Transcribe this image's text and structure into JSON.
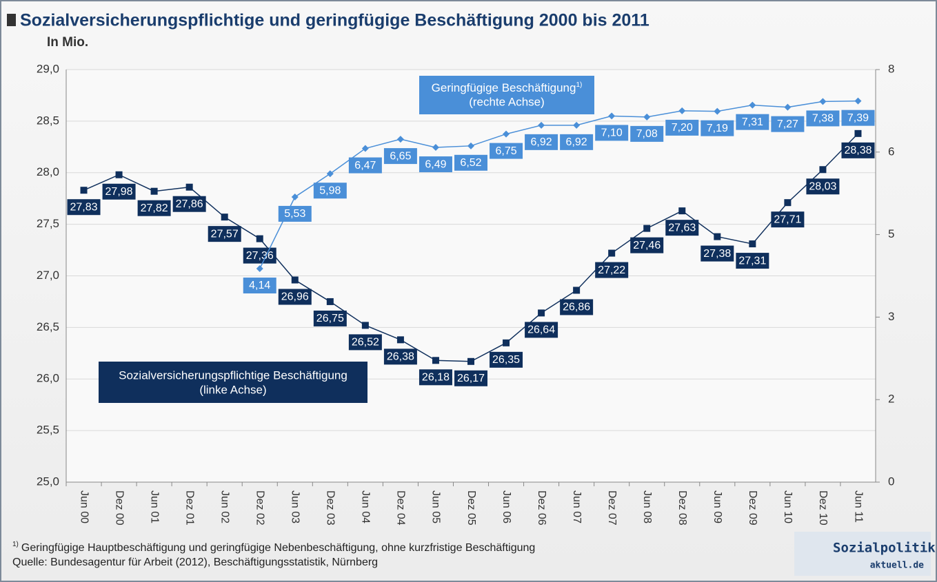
{
  "chart_data": {
    "type": "line",
    "title": "Sozialversicherungspflichtige und geringfügige Beschäftigung 2000 bis 2011",
    "subtitle": "In Mio.",
    "categories": [
      "Jun 00",
      "Dez 00",
      "Jun 01",
      "Dez 01",
      "Jun 02",
      "Dez 02",
      "Jun 03",
      "Dez 03",
      "Jun 04",
      "Dez 04",
      "Jun 05",
      "Dez 05",
      "Jun 06",
      "Dez 06",
      "Jun 07",
      "Dez 07",
      "Jun 08",
      "Dez 08",
      "Jun 09",
      "Dez 09",
      "Jun 10",
      "Dez 10",
      "Jun 11"
    ],
    "ylim": [
      25,
      29
    ],
    "yticks": [
      {
        "value": 25,
        "label": "25,0"
      },
      {
        "value": 25.5,
        "label": "25,5"
      },
      {
        "value": 26,
        "label": "26,0"
      },
      {
        "value": 26.5,
        "label": "26,5"
      },
      {
        "value": 27,
        "label": "27,0"
      },
      {
        "value": 27.5,
        "label": "27,5"
      },
      {
        "value": 28,
        "label": "28,0"
      },
      {
        "value": 28.5,
        "label": "28,5"
      },
      {
        "value": 29,
        "label": "29,0"
      }
    ],
    "y2lim": [
      0,
      8
    ],
    "y2ticks": [
      0,
      {
        "value": 1.6,
        "label": "2"
      },
      {
        "value": 3.2,
        "label": "3"
      },
      {
        "value": 4.8,
        "label": "5"
      },
      {
        "value": 6.4,
        "label": "6"
      },
      8
    ],
    "grid": true,
    "series": [
      {
        "name": "Sozialversicherungspflichtige Beschäftigung",
        "axis_note": "(linke Achse)",
        "color": "#0f2f5c",
        "marker": "square",
        "values": [
          27.83,
          27.98,
          27.82,
          27.86,
          27.57,
          27.36,
          26.96,
          26.75,
          26.52,
          26.38,
          26.18,
          26.17,
          26.35,
          26.64,
          26.86,
          27.22,
          27.46,
          27.63,
          27.38,
          27.31,
          27.71,
          28.03,
          28.38
        ],
        "value_labels": [
          "27,83",
          "27,98",
          "27,82",
          "27,86",
          "27,57",
          "27,36",
          "26,96",
          "26,75",
          "26,52",
          "26,38",
          "26,18",
          "26,17",
          "26,35",
          "26,64",
          "26,86",
          "27,22",
          "27,46",
          "27,63",
          "27,38",
          "27,31",
          "27,71",
          "28,03",
          "28,38"
        ]
      },
      {
        "name": "Geringfügige Beschäftigung",
        "name_note": "1)",
        "axis_note": "(rechte Achse)",
        "color": "#4a8fd8",
        "marker": "diamond",
        "axis": "y2",
        "values": [
          null,
          null,
          null,
          null,
          null,
          4.14,
          5.53,
          5.98,
          6.47,
          6.65,
          6.49,
          6.52,
          6.75,
          6.92,
          6.92,
          7.1,
          7.08,
          7.2,
          7.19,
          7.31,
          7.27,
          7.38,
          7.39
        ],
        "value_labels": [
          null,
          null,
          null,
          null,
          null,
          "4,14",
          "5,53",
          "5,98",
          "6,47",
          "6,65",
          "6,49",
          "6,52",
          "6,75",
          "6,92",
          "6,92",
          "7,10",
          "7,08",
          "7,20",
          "7,19",
          "7,31",
          "7,27",
          "7,38",
          "7,39"
        ]
      }
    ],
    "footnote": {
      "marker": "1)",
      "text": "Geringfügige Hauptbeschäftigung und geringfügige Nebenbeschäftigung, ohne kurzfristige Beschäftigung"
    },
    "source": "Quelle: Bundesagentur für Arbeit (2012), Beschäftigungsstatistik, Nürnberg",
    "logo": {
      "line1": "Sozialpolitik-",
      "line2": "aktuell.de"
    }
  }
}
